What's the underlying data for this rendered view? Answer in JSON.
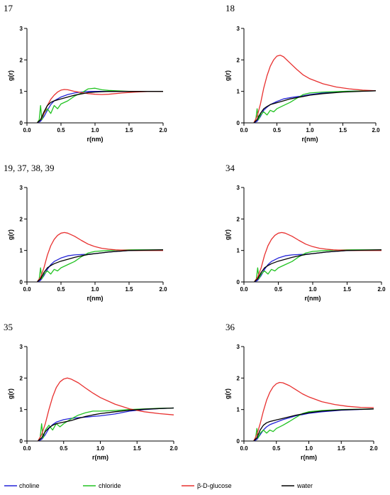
{
  "legend": [
    {
      "name": "choline",
      "color": "#2424d8"
    },
    {
      "name": "chloride",
      "color": "#22c322"
    },
    {
      "name": "β-D-glucose",
      "color": "#e8302f"
    },
    {
      "name": "water",
      "color": "#000000"
    }
  ],
  "chart_data": [
    {
      "type": "line",
      "panel_label": "17",
      "xlabel": "r(nm)",
      "ylabel": "g(r)",
      "xlim": [
        0,
        2.0
      ],
      "ylim": [
        0,
        3
      ],
      "xticks": [
        "0.0",
        "0.5",
        "1.0",
        "1.5",
        "2.0"
      ],
      "yticks": [
        "0",
        "1",
        "2",
        "3"
      ],
      "series": [
        {
          "name": "choline",
          "x": [
            0.15,
            0.2,
            0.25,
            0.3,
            0.35,
            0.4,
            0.5,
            0.6,
            0.7,
            0.8,
            0.9,
            1.0,
            1.2,
            1.5,
            2.0
          ],
          "y": [
            0,
            0.05,
            0.2,
            0.4,
            0.58,
            0.7,
            0.82,
            0.9,
            0.95,
            0.98,
            1.0,
            1.0,
            1.0,
            1.0,
            1.0
          ]
        },
        {
          "name": "chloride",
          "x": [
            0.15,
            0.18,
            0.2,
            0.22,
            0.25,
            0.3,
            0.35,
            0.4,
            0.45,
            0.5,
            0.6,
            0.7,
            0.8,
            0.9,
            1.0,
            1.1,
            1.2,
            1.5,
            2.0
          ],
          "y": [
            0,
            0.1,
            0.55,
            0.1,
            0.3,
            0.45,
            0.3,
            0.55,
            0.45,
            0.6,
            0.7,
            0.85,
            0.95,
            1.08,
            1.1,
            1.05,
            1.03,
            1.0,
            1.0
          ]
        },
        {
          "name": "β-D-glucose",
          "x": [
            0.15,
            0.2,
            0.25,
            0.3,
            0.35,
            0.4,
            0.45,
            0.5,
            0.55,
            0.6,
            0.7,
            0.8,
            0.9,
            1.0,
            1.1,
            1.2,
            1.4,
            1.6,
            1.8,
            2.0
          ],
          "y": [
            0,
            0.1,
            0.3,
            0.55,
            0.75,
            0.88,
            0.98,
            1.04,
            1.06,
            1.05,
            1.0,
            0.96,
            0.93,
            0.91,
            0.9,
            0.91,
            0.95,
            0.98,
            1.0,
            1.0
          ]
        },
        {
          "name": "water",
          "x": [
            0.15,
            0.2,
            0.25,
            0.3,
            0.35,
            0.4,
            0.5,
            0.6,
            0.7,
            0.8,
            0.9,
            1.0,
            1.2,
            1.5,
            2.0
          ],
          "y": [
            0,
            0.1,
            0.35,
            0.55,
            0.65,
            0.7,
            0.76,
            0.82,
            0.88,
            0.92,
            0.96,
            0.98,
            1.0,
            1.0,
            1.0
          ]
        }
      ]
    },
    {
      "type": "line",
      "panel_label": "18",
      "xlabel": "r(nm)",
      "ylabel": "g(r)",
      "xlim": [
        0,
        2.0
      ],
      "ylim": [
        0,
        3
      ],
      "xticks": [
        "0.0",
        "0.5",
        "1.0",
        "1.5",
        "2.0"
      ],
      "yticks": [
        "0",
        "1",
        "2",
        "3"
      ],
      "series": [
        {
          "name": "choline",
          "x": [
            0.15,
            0.2,
            0.25,
            0.3,
            0.35,
            0.4,
            0.5,
            0.6,
            0.7,
            0.8,
            0.9,
            1.0,
            1.2,
            1.5,
            2.0
          ],
          "y": [
            0,
            0.05,
            0.2,
            0.4,
            0.5,
            0.58,
            0.68,
            0.76,
            0.8,
            0.83,
            0.86,
            0.9,
            0.95,
            1.0,
            1.02
          ]
        },
        {
          "name": "chloride",
          "x": [
            0.15,
            0.18,
            0.2,
            0.22,
            0.25,
            0.3,
            0.35,
            0.4,
            0.45,
            0.5,
            0.6,
            0.7,
            0.8,
            0.9,
            1.0,
            1.2,
            1.5,
            2.0
          ],
          "y": [
            0,
            0.1,
            0.45,
            0.1,
            0.25,
            0.35,
            0.25,
            0.4,
            0.35,
            0.45,
            0.55,
            0.65,
            0.78,
            0.9,
            0.95,
            0.98,
            1.0,
            1.02
          ]
        },
        {
          "name": "β-D-glucose",
          "x": [
            0.15,
            0.2,
            0.25,
            0.3,
            0.35,
            0.4,
            0.45,
            0.5,
            0.55,
            0.6,
            0.7,
            0.8,
            0.9,
            1.0,
            1.2,
            1.4,
            1.6,
            1.8,
            2.0
          ],
          "y": [
            0,
            0.2,
            0.6,
            1.1,
            1.5,
            1.8,
            2.0,
            2.12,
            2.15,
            2.1,
            1.9,
            1.7,
            1.52,
            1.4,
            1.24,
            1.14,
            1.08,
            1.04,
            1.02
          ]
        },
        {
          "name": "water",
          "x": [
            0.15,
            0.2,
            0.25,
            0.3,
            0.35,
            0.4,
            0.5,
            0.6,
            0.7,
            0.8,
            0.9,
            1.0,
            1.2,
            1.5,
            2.0
          ],
          "y": [
            0,
            0.1,
            0.3,
            0.45,
            0.52,
            0.58,
            0.64,
            0.7,
            0.76,
            0.8,
            0.84,
            0.88,
            0.93,
            0.98,
            1.02
          ]
        }
      ]
    },
    {
      "type": "line",
      "panel_label": "19, 37, 38, 39",
      "xlabel": "r(nm)",
      "ylabel": "g(r)",
      "xlim": [
        0,
        2.0
      ],
      "ylim": [
        0,
        3
      ],
      "xticks": [
        "0.0",
        "0.5",
        "1.0",
        "1.5",
        "2.0"
      ],
      "yticks": [
        "0",
        "1",
        "2",
        "3"
      ],
      "series": [
        {
          "name": "choline",
          "x": [
            0.15,
            0.2,
            0.25,
            0.3,
            0.35,
            0.4,
            0.5,
            0.6,
            0.7,
            0.8,
            0.9,
            1.0,
            1.2,
            1.5,
            2.0
          ],
          "y": [
            0,
            0.05,
            0.2,
            0.4,
            0.55,
            0.65,
            0.76,
            0.83,
            0.86,
            0.87,
            0.88,
            0.9,
            0.95,
            1.0,
            1.02
          ]
        },
        {
          "name": "chloride",
          "x": [
            0.15,
            0.18,
            0.2,
            0.22,
            0.25,
            0.3,
            0.35,
            0.4,
            0.45,
            0.5,
            0.6,
            0.7,
            0.8,
            0.9,
            1.0,
            1.2,
            1.5,
            2.0
          ],
          "y": [
            0,
            0.1,
            0.45,
            0.1,
            0.25,
            0.35,
            0.25,
            0.4,
            0.35,
            0.45,
            0.55,
            0.65,
            0.8,
            0.92,
            0.97,
            1.0,
            1.02,
            1.02
          ]
        },
        {
          "name": "β-D-glucose",
          "x": [
            0.15,
            0.2,
            0.25,
            0.3,
            0.35,
            0.4,
            0.45,
            0.5,
            0.55,
            0.6,
            0.7,
            0.8,
            0.9,
            1.0,
            1.1,
            1.2,
            1.3,
            1.4,
            1.6,
            2.0
          ],
          "y": [
            0,
            0.15,
            0.45,
            0.85,
            1.15,
            1.35,
            1.48,
            1.55,
            1.57,
            1.55,
            1.45,
            1.32,
            1.2,
            1.12,
            1.07,
            1.04,
            1.02,
            1.01,
            1.0,
            1.0
          ]
        },
        {
          "name": "water",
          "x": [
            0.15,
            0.2,
            0.25,
            0.3,
            0.35,
            0.4,
            0.5,
            0.6,
            0.7,
            0.8,
            0.9,
            1.0,
            1.2,
            1.5,
            2.0
          ],
          "y": [
            0,
            0.1,
            0.3,
            0.45,
            0.52,
            0.58,
            0.66,
            0.72,
            0.78,
            0.83,
            0.87,
            0.9,
            0.95,
            1.0,
            1.02
          ]
        }
      ]
    },
    {
      "type": "line",
      "panel_label": "34",
      "xlabel": "r(nm)",
      "ylabel": "g(r)",
      "xlim": [
        0,
        2.0
      ],
      "ylim": [
        0,
        3
      ],
      "xticks": [
        "0.0",
        "0.5",
        "1.0",
        "1.5",
        "2.0"
      ],
      "yticks": [
        "0",
        "1",
        "2",
        "3"
      ],
      "series": [
        {
          "name": "choline",
          "x": [
            0.15,
            0.2,
            0.25,
            0.3,
            0.35,
            0.4,
            0.5,
            0.6,
            0.7,
            0.8,
            0.9,
            1.0,
            1.2,
            1.5,
            2.0
          ],
          "y": [
            0,
            0.05,
            0.2,
            0.4,
            0.55,
            0.65,
            0.76,
            0.83,
            0.86,
            0.87,
            0.88,
            0.9,
            0.95,
            1.0,
            1.02
          ]
        },
        {
          "name": "chloride",
          "x": [
            0.15,
            0.18,
            0.2,
            0.22,
            0.25,
            0.3,
            0.35,
            0.4,
            0.45,
            0.5,
            0.6,
            0.7,
            0.8,
            0.9,
            1.0,
            1.2,
            1.5,
            2.0
          ],
          "y": [
            0,
            0.1,
            0.45,
            0.1,
            0.25,
            0.35,
            0.25,
            0.4,
            0.35,
            0.45,
            0.55,
            0.65,
            0.8,
            0.92,
            0.97,
            1.0,
            1.02,
            1.02
          ]
        },
        {
          "name": "β-D-glucose",
          "x": [
            0.15,
            0.2,
            0.25,
            0.3,
            0.35,
            0.4,
            0.45,
            0.5,
            0.55,
            0.6,
            0.7,
            0.8,
            0.9,
            1.0,
            1.1,
            1.2,
            1.3,
            1.4,
            1.6,
            2.0
          ],
          "y": [
            0,
            0.15,
            0.45,
            0.85,
            1.15,
            1.35,
            1.48,
            1.55,
            1.57,
            1.55,
            1.45,
            1.32,
            1.2,
            1.12,
            1.07,
            1.04,
            1.02,
            1.01,
            1.0,
            1.0
          ]
        },
        {
          "name": "water",
          "x": [
            0.15,
            0.2,
            0.25,
            0.3,
            0.35,
            0.4,
            0.5,
            0.6,
            0.7,
            0.8,
            0.9,
            1.0,
            1.2,
            1.5,
            2.0
          ],
          "y": [
            0,
            0.1,
            0.3,
            0.45,
            0.52,
            0.58,
            0.66,
            0.72,
            0.78,
            0.83,
            0.87,
            0.9,
            0.95,
            1.0,
            1.02
          ]
        }
      ]
    },
    {
      "type": "line",
      "panel_label": "35",
      "xlabel": "r(nm)",
      "ylabel": "g(r)",
      "xlim": [
        0,
        2.0
      ],
      "ylim": [
        0,
        3
      ],
      "xticks": [
        "0.0",
        "0.5",
        "1.0",
        "1.5",
        "2.0"
      ],
      "yticks": [
        "0",
        "1",
        "2",
        "3"
      ],
      "series": [
        {
          "name": "choline",
          "x": [
            0.15,
            0.2,
            0.25,
            0.3,
            0.35,
            0.4,
            0.5,
            0.6,
            0.7,
            0.8,
            0.9,
            1.0,
            1.2,
            1.4,
            1.6,
            1.8,
            2.0
          ],
          "y": [
            0,
            0.05,
            0.2,
            0.4,
            0.52,
            0.6,
            0.68,
            0.72,
            0.74,
            0.76,
            0.78,
            0.8,
            0.86,
            0.95,
            1.0,
            1.03,
            1.05
          ]
        },
        {
          "name": "chloride",
          "x": [
            0.15,
            0.18,
            0.2,
            0.22,
            0.25,
            0.3,
            0.35,
            0.4,
            0.45,
            0.5,
            0.6,
            0.7,
            0.8,
            0.9,
            1.0,
            1.2,
            1.4,
            1.6,
            1.8,
            2.0
          ],
          "y": [
            0,
            0.1,
            0.55,
            0.1,
            0.35,
            0.5,
            0.35,
            0.55,
            0.45,
            0.55,
            0.7,
            0.82,
            0.9,
            0.95,
            0.95,
            0.97,
            1.0,
            1.02,
            1.04,
            1.05
          ]
        },
        {
          "name": "β-D-glucose",
          "x": [
            0.15,
            0.2,
            0.25,
            0.3,
            0.35,
            0.4,
            0.45,
            0.5,
            0.55,
            0.6,
            0.7,
            0.8,
            0.9,
            1.0,
            1.2,
            1.4,
            1.6,
            1.8,
            2.0
          ],
          "y": [
            0,
            0.2,
            0.55,
            1.0,
            1.4,
            1.7,
            1.88,
            1.97,
            2.0,
            1.97,
            1.85,
            1.68,
            1.52,
            1.38,
            1.17,
            1.02,
            0.93,
            0.87,
            0.83
          ]
        },
        {
          "name": "water",
          "x": [
            0.15,
            0.2,
            0.25,
            0.3,
            0.35,
            0.4,
            0.5,
            0.6,
            0.7,
            0.8,
            0.9,
            1.0,
            1.2,
            1.4,
            1.6,
            1.8,
            2.0
          ],
          "y": [
            0,
            0.1,
            0.3,
            0.42,
            0.5,
            0.55,
            0.6,
            0.65,
            0.72,
            0.78,
            0.83,
            0.87,
            0.93,
            0.98,
            1.01,
            1.03,
            1.05
          ]
        }
      ]
    },
    {
      "type": "line",
      "panel_label": "36",
      "xlabel": "r(nm)",
      "ylabel": "g(r)",
      "xlim": [
        0,
        2.0
      ],
      "ylim": [
        0,
        3
      ],
      "xticks": [
        "0.0",
        "0.5",
        "1.0",
        "1.5",
        "2.0"
      ],
      "yticks": [
        "0",
        "1",
        "2",
        "3"
      ],
      "series": [
        {
          "name": "choline",
          "x": [
            0.15,
            0.2,
            0.25,
            0.3,
            0.35,
            0.4,
            0.5,
            0.6,
            0.7,
            0.8,
            0.9,
            1.0,
            1.2,
            1.5,
            2.0
          ],
          "y": [
            0,
            0.05,
            0.2,
            0.35,
            0.45,
            0.52,
            0.6,
            0.68,
            0.74,
            0.8,
            0.84,
            0.88,
            0.93,
            0.98,
            1.02
          ]
        },
        {
          "name": "chloride",
          "x": [
            0.15,
            0.18,
            0.2,
            0.22,
            0.25,
            0.3,
            0.35,
            0.4,
            0.45,
            0.5,
            0.6,
            0.7,
            0.8,
            0.9,
            1.0,
            1.2,
            1.5,
            2.0
          ],
          "y": [
            0,
            0.1,
            0.4,
            0.1,
            0.25,
            0.35,
            0.25,
            0.35,
            0.3,
            0.4,
            0.5,
            0.62,
            0.75,
            0.87,
            0.93,
            0.97,
            1.0,
            1.02
          ]
        },
        {
          "name": "β-D-glucose",
          "x": [
            0.15,
            0.2,
            0.25,
            0.3,
            0.35,
            0.4,
            0.45,
            0.5,
            0.55,
            0.6,
            0.7,
            0.8,
            0.9,
            1.0,
            1.2,
            1.4,
            1.6,
            1.8,
            2.0
          ],
          "y": [
            0,
            0.2,
            0.55,
            0.95,
            1.3,
            1.55,
            1.72,
            1.82,
            1.86,
            1.85,
            1.76,
            1.63,
            1.5,
            1.4,
            1.25,
            1.16,
            1.1,
            1.07,
            1.06
          ]
        },
        {
          "name": "water",
          "x": [
            0.15,
            0.2,
            0.25,
            0.3,
            0.35,
            0.4,
            0.5,
            0.6,
            0.7,
            0.8,
            0.9,
            1.0,
            1.2,
            1.5,
            2.0
          ],
          "y": [
            0,
            0.1,
            0.35,
            0.5,
            0.58,
            0.62,
            0.67,
            0.72,
            0.77,
            0.82,
            0.86,
            0.9,
            0.95,
            0.99,
            1.02
          ]
        }
      ]
    }
  ]
}
